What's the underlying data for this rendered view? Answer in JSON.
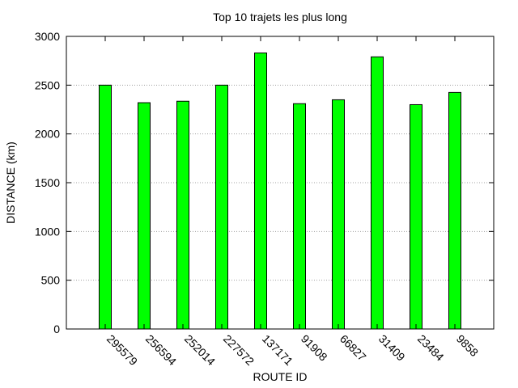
{
  "chart_data": {
    "type": "bar",
    "title": "Top 10 trajets les plus long",
    "xlabel": "ROUTE ID",
    "ylabel": "DISTANCE (km)",
    "categories": [
      "295579",
      "256594",
      "252014",
      "227572",
      "137171",
      "91908",
      "66827",
      "31409",
      "23484",
      "9858"
    ],
    "values": [
      2500,
      2320,
      2335,
      2500,
      2830,
      2310,
      2350,
      2790,
      2300,
      2425
    ],
    "ylim": [
      0,
      3000
    ],
    "yticks": [
      0,
      500,
      1000,
      1500,
      2000,
      2500,
      3000
    ],
    "grid": true,
    "bar_color": "#00ff00",
    "bar_stroke": "#000000",
    "grid_color": "#a0a0a0"
  }
}
